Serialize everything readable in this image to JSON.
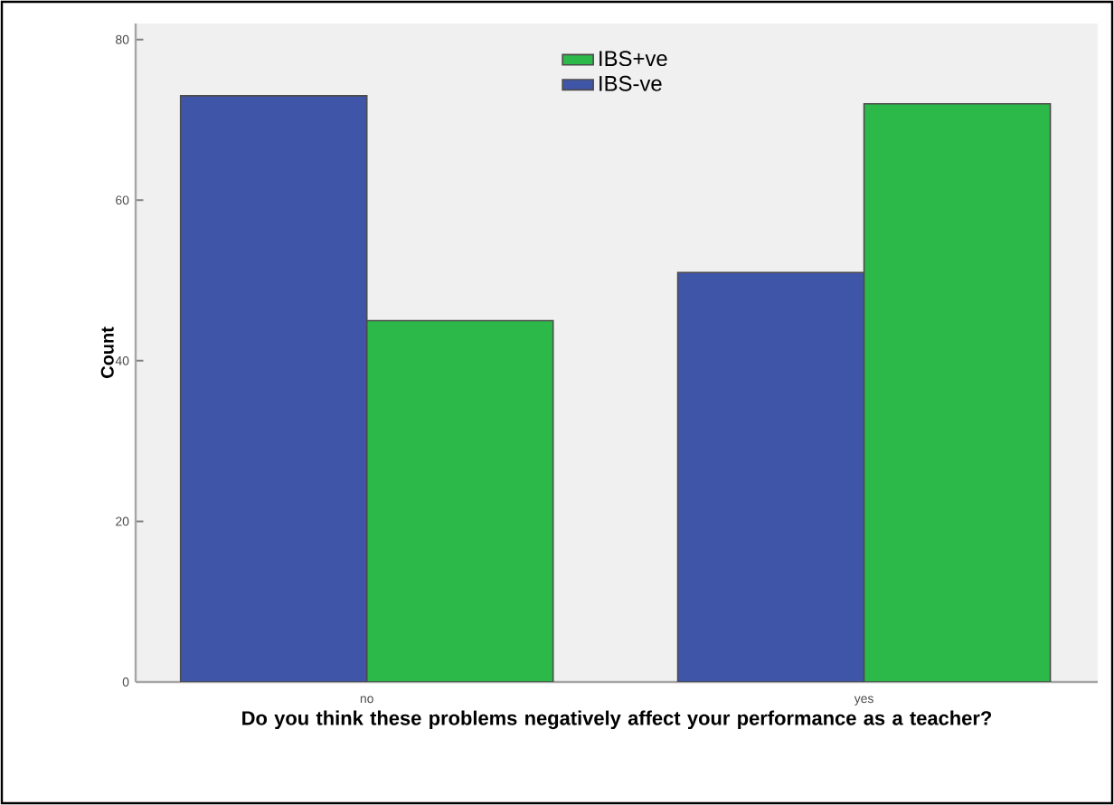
{
  "chart_data": {
    "type": "bar",
    "xlabel": "Do you think these problems negatively affect your performance as a teacher?",
    "ylabel": "Count",
    "categories": [
      "no",
      "yes"
    ],
    "series": [
      {
        "name": "IBS-ve",
        "color": "#3f55a8",
        "values": [
          73,
          51
        ]
      },
      {
        "name": "IBS+ve",
        "color": "#2db84a",
        "values": [
          45,
          72
        ]
      }
    ],
    "ylim": [
      0,
      82
    ],
    "yticks": [
      0,
      20,
      40,
      60,
      80
    ],
    "grid": false,
    "legend": "top"
  }
}
